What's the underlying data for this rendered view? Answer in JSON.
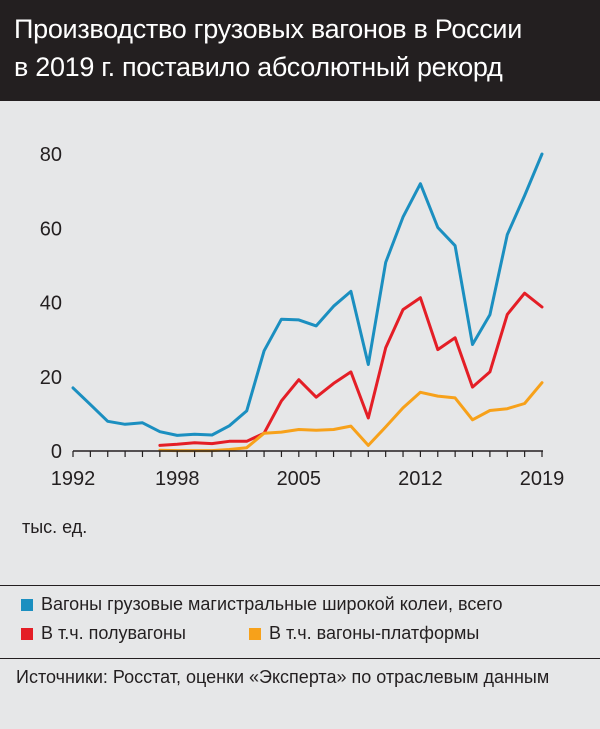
{
  "header": {
    "title_line1": "Производство грузовых вагонов в России",
    "title_line2": "в 2019 г. поставило абсолютный рекорд"
  },
  "unit_label": "тыс. ед.",
  "legend": [
    {
      "label": "Вагоны грузовые магистральные широкой колеи, всего",
      "color": "#1b8fc0"
    },
    {
      "label": "В т.ч. полувагоны",
      "color": "#e41e26"
    },
    {
      "label": "В т.ч. вагоны-платформы",
      "color": "#f7a11a"
    }
  ],
  "source": "Источники: Росстат, оценки «Эксперта» по отраслевым данным",
  "chart_data": {
    "type": "line",
    "xlim": [
      1992,
      2019
    ],
    "ylim": [
      0,
      80
    ],
    "x_ticks": [
      1992,
      1998,
      2005,
      2012,
      2019
    ],
    "x_tick_labels": [
      "1992",
      "1998",
      "2005",
      "2012",
      "2019"
    ],
    "y_ticks": [
      0,
      20,
      40,
      60,
      80
    ],
    "y_tick_labels": [
      "0",
      "20",
      "40",
      "60",
      "80"
    ],
    "grid": false,
    "series": [
      {
        "name": "Вагоны грузовые магистральные широкой колеи, всего",
        "color": "#1b8fc0",
        "x": [
          1992,
          1993,
          1994,
          1995,
          1996,
          1997,
          1998,
          1999,
          2000,
          2001,
          2002,
          2003,
          2004,
          2005,
          2006,
          2007,
          2008,
          2009,
          2010,
          2011,
          2012,
          2013,
          2014,
          2015,
          2016,
          2017,
          2018,
          2019
        ],
        "y": [
          17,
          12.5,
          8,
          7.2,
          7.6,
          5.2,
          4.2,
          4.5,
          4.3,
          6.8,
          10.8,
          27,
          35.5,
          35.3,
          33.7,
          39,
          43,
          23.3,
          50.8,
          63,
          72,
          60.2,
          55.3,
          28.7,
          36.7,
          58.3,
          68.8,
          80
        ]
      },
      {
        "name": "В т.ч. полувагоны",
        "color": "#e41e26",
        "x": [
          1997,
          1998,
          1999,
          2000,
          2001,
          2002,
          2003,
          2004,
          2005,
          2006,
          2007,
          2008,
          2009,
          2010,
          2011,
          2012,
          2013,
          2014,
          2015,
          2016,
          2017,
          2018,
          2019
        ],
        "y": [
          1.5,
          1.8,
          2.2,
          2,
          2.6,
          2.6,
          4.8,
          13.5,
          19.2,
          14.5,
          18.2,
          21.3,
          8.9,
          27.8,
          38.1,
          41.3,
          27.3,
          30.5,
          17.2,
          21.3,
          36.8,
          42.5,
          38.8
        ]
      },
      {
        "name": "В т.ч. вагоны-платформы",
        "color": "#f7a11a",
        "x": [
          1997,
          1998,
          1999,
          2000,
          2001,
          2002,
          2003,
          2004,
          2005,
          2006,
          2007,
          2008,
          2009,
          2010,
          2011,
          2012,
          2013,
          2014,
          2015,
          2016,
          2017,
          2018,
          2019
        ],
        "y": [
          0.2,
          0.1,
          0.1,
          0.1,
          0.4,
          0.9,
          4.8,
          5.1,
          5.8,
          5.6,
          5.8,
          6.7,
          1.5,
          6.5,
          11.6,
          15.8,
          14.8,
          14.3,
          8.4,
          10.9,
          11.4,
          12.8,
          18.4
        ]
      }
    ]
  }
}
